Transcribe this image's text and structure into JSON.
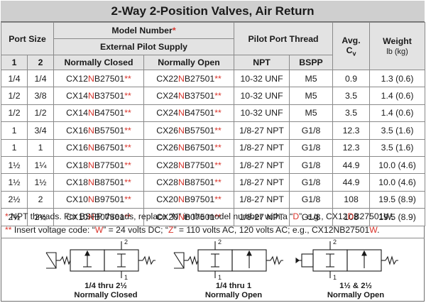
{
  "title": "2-Way 2-Position Valves, Air Return",
  "headers": {
    "port_size": "Port Size",
    "model_number": "Model Number",
    "model_number_mark": "*",
    "external_pilot_supply": "External Pilot Supply",
    "pilot_port_thread": "Pilot Port Thread",
    "avg": "Avg.",
    "cv_c": "C",
    "cv_sub": "v",
    "weight": "Weight",
    "weight_unit": "lb (kg)",
    "col1": "1",
    "col2": "2",
    "normally_closed": "Normally Closed",
    "normally_open": "Normally Open",
    "npt": "NPT",
    "bspp": "BSPP"
  },
  "rows": [
    {
      "p1": "1/4",
      "p2": "1/4",
      "nc_a": "CX12",
      "nc_b": "N",
      "nc_c": "B27501",
      "nc_d": "**",
      "no_a": "CX22",
      "no_b": "N",
      "no_c": "B27501",
      "no_d": "**",
      "npt": "10-32 UNF",
      "bspp": "M5",
      "cv": "0.9",
      "weight": "1.3 (0.6)"
    },
    {
      "p1": "1/2",
      "p2": "3/8",
      "nc_a": "CX14",
      "nc_b": "N",
      "nc_c": "B37501",
      "nc_d": "**",
      "no_a": "CX24",
      "no_b": "N",
      "no_c": "B37501",
      "no_d": "**",
      "npt": "10-32 UNF",
      "bspp": "M5",
      "cv": "3.5",
      "weight": "1.4 (0.6)"
    },
    {
      "p1": "1/2",
      "p2": "1/2",
      "nc_a": "CX14",
      "nc_b": "N",
      "nc_c": "B47501",
      "nc_d": "**",
      "no_a": "CX24",
      "no_b": "N",
      "no_c": "B47501",
      "no_d": "**",
      "npt": "10-32 UNF",
      "bspp": "M5",
      "cv": "3.5",
      "weight": "1.4 (0.6)"
    },
    {
      "p1": "1",
      "p2": "3/4",
      "nc_a": "CX16",
      "nc_b": "N",
      "nc_c": "B57501",
      "nc_d": "**",
      "no_a": "CX26",
      "no_b": "N",
      "no_c": "B57501",
      "no_d": "**",
      "npt": "1/8-27 NPT",
      "bspp": "G1/8",
      "cv": "12.3",
      "weight": "3.5 (1.6)"
    },
    {
      "p1": "1",
      "p2": "1",
      "nc_a": "CX16",
      "nc_b": "N",
      "nc_c": "B67501",
      "nc_d": "**",
      "no_a": "CX26",
      "no_b": "N",
      "no_c": "B67501",
      "no_d": "**",
      "npt": "1/8-27 NPT",
      "bspp": "G1/8",
      "cv": "12.3",
      "weight": "3.5 (1.6)"
    },
    {
      "p1": "1½",
      "p2": "1¼",
      "nc_a": "CX18",
      "nc_b": "N",
      "nc_c": "B77501",
      "nc_d": "**",
      "no_a": "CX28",
      "no_b": "N",
      "no_c": "B77501",
      "no_d": "**",
      "npt": "1/8-27 NPT",
      "bspp": "G1/8",
      "cv": "44.9",
      "weight": "10.0 (4.6)"
    },
    {
      "p1": "1½",
      "p2": "1½",
      "nc_a": "CX18",
      "nc_b": "N",
      "nc_c": "B87501",
      "nc_d": "**",
      "no_a": "CX28",
      "no_b": "N",
      "no_c": "B87501",
      "no_d": "**",
      "npt": "1/8-27 NPT",
      "bspp": "G1/8",
      "cv": "44.9",
      "weight": "10.0 (4.6)"
    },
    {
      "p1": "2½",
      "p2": "2",
      "nc_a": "CX10",
      "nc_b": "N",
      "nc_c": "B97501",
      "nc_d": "**",
      "no_a": "CX20",
      "no_b": "N",
      "no_c": "B97501",
      "no_d": "**",
      "npt": "1/8-27 NPT",
      "bspp": "G1/8",
      "cv": "108",
      "weight": "19.5 (8.9)"
    },
    {
      "p1": "2½",
      "p2": "2½",
      "nc_a": "CX10",
      "nc_b": "N",
      "nc_c": "B07501",
      "nc_d": "**",
      "no_a": "CX20",
      "no_b": "N",
      "no_c": "B07501",
      "no_d": "**",
      "npt": "1/8-27 NPT",
      "bspp": "G1/8",
      "cv": "108",
      "weight": "19.5 (8.9)"
    }
  ],
  "notes": {
    "n1_mark": "*",
    "n1_a": " NPT threads.  For BSPP threads, replace “N” in the model number with a “",
    "n1_b": "D",
    "n1_c": "”, e.g., CX12",
    "n1_d": "D",
    "n1_e": "B27501W.",
    "n2_mark": "**",
    "n2_a": " Insert voltage code: “",
    "n2_b": "W",
    "n2_c": "” = 24 volts DC; “",
    "n2_d": "Z",
    "n2_e": "” = 110 volts AC, 120 volts AC; e.g., CX12NB27501",
    "n2_f": "W",
    "n2_g": "."
  },
  "diagrams": [
    {
      "port_top": "2",
      "port_bottom": "1",
      "line1": "1/4 thru 2½",
      "line2": "Normally Closed"
    },
    {
      "port_top": "2",
      "port_bottom": "1",
      "line1": "1/4 thru 1",
      "line2": "Normally Open"
    },
    {
      "port_top": "2",
      "port_bottom": "1",
      "line1": "1½ & 2½",
      "line2": "Normally Open"
    }
  ],
  "colors": {
    "accent_red": "#d9332a",
    "header_gray": "#cfcfcf"
  }
}
